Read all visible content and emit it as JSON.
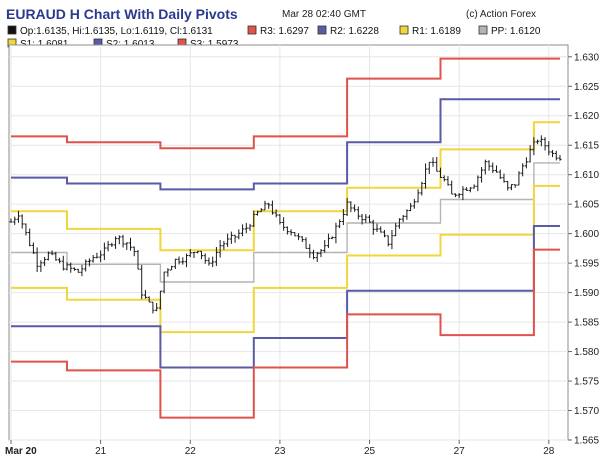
{
  "header": {
    "title": "EURAUD H Chart With Daily Pivots",
    "timestamp": "Mar 28 02:40 GMT",
    "credit": "(c) Action Forex"
  },
  "chart_data": {
    "type": "line",
    "title": "EURAUD H Chart With Daily Pivots",
    "ylim": [
      1.565,
      1.632
    ],
    "grid": true,
    "legend": [
      {
        "key": "ohlc",
        "text": "Op:1.6135, Hi:1.6135, Lo:1.6119, Cl:1.6131",
        "color": "#111111"
      },
      {
        "key": "r3",
        "text": "R3: 1.6297",
        "color": "#e0524a"
      },
      {
        "key": "r2",
        "text": "R2: 1.6228",
        "color": "#5a5aa6"
      },
      {
        "key": "r1",
        "text": "R1: 1.6189",
        "color": "#f1d63a"
      },
      {
        "key": "pp",
        "text": "PP: 1.6120",
        "color": "#b4b4b4"
      },
      {
        "key": "s1",
        "text": "S1: 1.6081",
        "color": "#f1d63a"
      },
      {
        "key": "s2",
        "text": "S2: 1.6013",
        "color": "#5a5aa6"
      },
      {
        "key": "s3",
        "text": "S3: 1.5973",
        "color": "#e0524a"
      }
    ],
    "y_ticks": [
      "1.565",
      "1.570",
      "1.575",
      "1.580",
      "1.585",
      "1.590",
      "1.595",
      "1.600",
      "1.605",
      "1.610",
      "1.615",
      "1.620",
      "1.625",
      "1.630"
    ],
    "x_ticks": [
      {
        "label": "Mar 20",
        "t": 0
      },
      {
        "label": "21",
        "t": 24
      },
      {
        "label": "22",
        "t": 48
      },
      {
        "label": "23",
        "t": 72
      },
      {
        "label": "25",
        "t": 96
      },
      {
        "label": "27",
        "t": 120
      },
      {
        "label": "28",
        "t": 144
      }
    ],
    "t_max": 147,
    "pivot_segments": {
      "bounds": [
        0,
        15,
        40,
        65,
        90,
        115,
        140,
        147
      ],
      "r3": [
        1.6165,
        1.6155,
        1.6145,
        1.6165,
        1.6263,
        1.6297,
        1.6297
      ],
      "r2": [
        1.6095,
        1.6085,
        1.6075,
        1.6085,
        1.6155,
        1.6228,
        1.6228
      ],
      "r1": [
        1.6038,
        1.6008,
        1.5972,
        1.6038,
        1.6078,
        1.6143,
        1.6189
      ],
      "pp": [
        1.5968,
        1.5948,
        1.5918,
        1.5968,
        1.6018,
        1.6058,
        1.612
      ],
      "s1": [
        1.5908,
        1.5888,
        1.5833,
        1.5908,
        1.5963,
        1.5998,
        1.6081
      ],
      "s2": [
        1.5843,
        1.5843,
        1.5773,
        1.5823,
        1.5903,
        1.5903,
        1.6013
      ],
      "s3": [
        1.5783,
        1.5768,
        1.5688,
        1.5773,
        1.5863,
        1.5828,
        1.5973
      ]
    },
    "close_anchors": [
      [
        0,
        1.602
      ],
      [
        2,
        1.6035
      ],
      [
        4,
        1.6
      ],
      [
        7,
        1.595
      ],
      [
        10,
        1.5965
      ],
      [
        14,
        1.5945
      ],
      [
        18,
        1.5935
      ],
      [
        22,
        1.596
      ],
      [
        25,
        1.597
      ],
      [
        28,
        1.5995
      ],
      [
        31,
        1.5985
      ],
      [
        33,
        1.597
      ],
      [
        35,
        1.59
      ],
      [
        37,
        1.588
      ],
      [
        39,
        1.587
      ],
      [
        41,
        1.5935
      ],
      [
        44,
        1.5955
      ],
      [
        47,
        1.596
      ],
      [
        50,
        1.5975
      ],
      [
        53,
        1.5945
      ],
      [
        56,
        1.598
      ],
      [
        60,
        1.5995
      ],
      [
        63,
        1.601
      ],
      [
        66,
        1.6035
      ],
      [
        69,
        1.605
      ],
      [
        72,
        1.6015
      ],
      [
        75,
        1.6005
      ],
      [
        78,
        1.5985
      ],
      [
        81,
        1.5965
      ],
      [
        84,
        1.5975
      ],
      [
        87,
        1.601
      ],
      [
        90,
        1.605
      ],
      [
        92,
        1.6035
      ],
      [
        95,
        1.6025
      ],
      [
        98,
        1.6005
      ],
      [
        101,
        1.5985
      ],
      [
        104,
        1.6025
      ],
      [
        107,
        1.6045
      ],
      [
        110,
        1.609
      ],
      [
        112,
        1.6125
      ],
      [
        114,
        1.6105
      ],
      [
        116,
        1.609
      ],
      [
        118,
        1.6065
      ],
      [
        121,
        1.6075
      ],
      [
        124,
        1.6085
      ],
      [
        127,
        1.612
      ],
      [
        130,
        1.6105
      ],
      [
        133,
        1.6075
      ],
      [
        135,
        1.6085
      ],
      [
        137,
        1.6115
      ],
      [
        139,
        1.614
      ],
      [
        141,
        1.616
      ],
      [
        143,
        1.615
      ],
      [
        145,
        1.6135
      ],
      [
        147,
        1.6131
      ]
    ]
  }
}
